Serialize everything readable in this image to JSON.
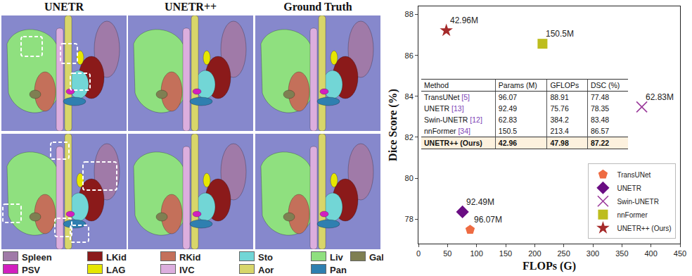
{
  "segmentation_figure": {
    "columns": [
      "UNETR",
      "UNETR++",
      "Ground Truth"
    ],
    "legend": [
      {
        "label": "Spleen",
        "color": "#a07aa8"
      },
      {
        "label": "LKid",
        "color": "#8b1a1a"
      },
      {
        "label": "RKid",
        "color": "#c4705a"
      },
      {
        "label": "Sto",
        "color": "#72d6d6"
      },
      {
        "label": "Liv",
        "color": "#8fe07f"
      },
      {
        "label": "Gal",
        "color": "#7f7f52"
      },
      {
        "label": "PSV",
        "color": "#d21fbf"
      },
      {
        "label": "LAG",
        "color": "#e6e600"
      },
      {
        "label": "IVC",
        "color": "#dcaede"
      },
      {
        "label": "Aor",
        "color": "#d8d66a"
      },
      {
        "label": "Pan",
        "color": "#2f7fb0"
      }
    ]
  },
  "chart_data": {
    "type": "scatter",
    "x_label": "FLOPs (G)",
    "y_label": "Dice Score (%)",
    "xlim": [
      0,
      450
    ],
    "xticks": [
      0,
      50,
      100,
      150,
      200,
      250,
      300,
      350,
      400,
      450
    ],
    "ylim": [
      76.8,
      88.4
    ],
    "yticks": [
      78,
      80,
      82,
      84,
      86,
      88
    ],
    "grid": false,
    "legend": "lower right",
    "series": [
      {
        "name": "TransUNet",
        "color": "#ee6b42",
        "marker": "pentagon",
        "x": [
          88.91
        ],
        "values": [
          77.48
        ],
        "annotation": "96.07M"
      },
      {
        "name": "UNETR",
        "color": "#6a0d83",
        "marker": "diamond",
        "x": [
          75.76
        ],
        "values": [
          78.35
        ],
        "annotation": "92.49M"
      },
      {
        "name": "Swin-UNETR",
        "color": "#9b3a9b",
        "marker": "x",
        "x": [
          384.2
        ],
        "values": [
          83.48
        ],
        "annotation": "62.83M"
      },
      {
        "name": "nnFormer",
        "color": "#bdbd1e",
        "marker": "square",
        "x": [
          213.4
        ],
        "values": [
          86.57
        ],
        "annotation": "150.5M"
      },
      {
        "name": "UNETR++ (Ours)",
        "color": "#a52a2a",
        "marker": "star",
        "x": [
          47.98
        ],
        "values": [
          87.22
        ],
        "annotation": "42.96M"
      }
    ]
  },
  "inset_table": {
    "header": [
      "Method",
      "Params (M)",
      "GFLOPs",
      "DSC (%)"
    ],
    "rows": [
      {
        "method": "TransUNet",
        "ref": "[5]",
        "cells": [
          "96.07",
          "88.91",
          "77.48"
        ]
      },
      {
        "method": "UNETR",
        "ref": "[13]",
        "cells": [
          "92.49",
          "75.76",
          "78.35"
        ]
      },
      {
        "method": "Swin-UNETR",
        "ref": "[12]",
        "cells": [
          "62.83",
          "384.2",
          "83.48"
        ]
      },
      {
        "method": "nnFormer",
        "ref": "[34]",
        "cells": [
          "150.5",
          "213.4",
          "86.57"
        ]
      },
      {
        "method": "UNETR++ (Ours)",
        "cells": [
          "42.96",
          "47.98",
          "87.22"
        ],
        "bold": true
      }
    ]
  }
}
